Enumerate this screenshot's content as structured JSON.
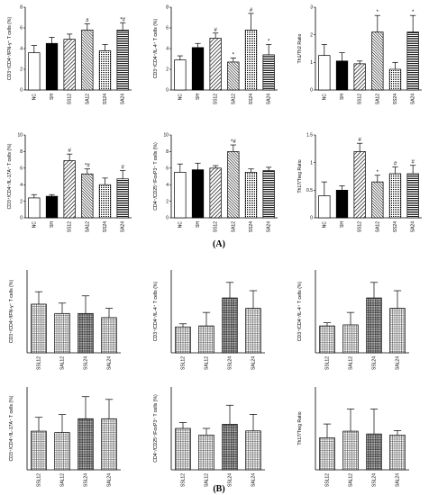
{
  "panel_labels": {
    "a": "(A)",
    "b": "(B)"
  },
  "chart_data": [
    {
      "type": "bar",
      "group": "A",
      "ylabel": "CD3⁺/CD4⁺/IFN-γ⁺ T cells (%)",
      "ylim": [
        0,
        8
      ],
      "yticks": [
        0,
        2,
        4,
        6,
        8
      ],
      "categories": [
        "NC",
        "SH",
        "SS12",
        "SA12",
        "SS24",
        "SA24"
      ],
      "values": [
        3.6,
        4.5,
        4.9,
        5.8,
        3.8,
        5.8
      ],
      "errors": [
        0.7,
        0.6,
        0.5,
        0.6,
        0.6,
        0.7
      ],
      "patterns": [
        "none",
        "solid",
        "diag",
        "diag-dense",
        "dots",
        "hlines"
      ],
      "annotations": [
        "",
        "",
        "",
        "#",
        "",
        "*#"
      ]
    },
    {
      "type": "bar",
      "group": "A",
      "ylabel": "CD3⁺/CD4⁺/IL-4⁺ T cells (%)",
      "ylim": [
        0,
        8
      ],
      "yticks": [
        0,
        2,
        4,
        6,
        8
      ],
      "categories": [
        "NC",
        "SH",
        "SS12",
        "SA12",
        "SS24",
        "SA24"
      ],
      "values": [
        2.9,
        4.1,
        5.0,
        2.7,
        5.8,
        3.4
      ],
      "errors": [
        0.4,
        0.4,
        0.5,
        0.4,
        1.6,
        1.0
      ],
      "patterns": [
        "none",
        "solid",
        "diag",
        "diag-dense",
        "dots",
        "hlines"
      ],
      "annotations": [
        "",
        "",
        "#",
        "*",
        "#",
        "*"
      ]
    },
    {
      "type": "bar",
      "group": "A",
      "ylabel": "Th1/Th2 Ratio",
      "ylim": [
        0,
        3
      ],
      "yticks": [
        0,
        1,
        2,
        3
      ],
      "categories": [
        "NC",
        "SH",
        "SS12",
        "SA12",
        "SS24",
        "SA24"
      ],
      "values": [
        1.25,
        1.05,
        0.95,
        2.1,
        0.75,
        2.1
      ],
      "errors": [
        0.4,
        0.3,
        0.1,
        0.6,
        0.25,
        0.6
      ],
      "patterns": [
        "none",
        "solid",
        "diag",
        "diag-dense",
        "dots",
        "hlines"
      ],
      "annotations": [
        "",
        "",
        "",
        "*",
        "",
        "*"
      ]
    },
    {
      "type": "bar",
      "group": "A",
      "ylabel": "CD3⁺/CD4⁺/IL-17A⁺ T cells (%)",
      "ylim": [
        0,
        10
      ],
      "yticks": [
        0,
        2,
        4,
        6,
        8,
        10
      ],
      "categories": [
        "NC",
        "SH",
        "SS12",
        "SA12",
        "SS24",
        "SA24"
      ],
      "values": [
        2.4,
        2.6,
        6.9,
        5.3,
        4.0,
        4.7
      ],
      "errors": [
        0.4,
        0.2,
        0.8,
        0.6,
        0.8,
        1.0
      ],
      "patterns": [
        "none",
        "solid",
        "diag",
        "diag-dense",
        "dots",
        "hlines"
      ],
      "annotations": [
        "",
        "",
        "#",
        "*#",
        "",
        "#"
      ]
    },
    {
      "type": "bar",
      "group": "A",
      "ylabel": "CD4⁺/CD25⁺/FoxP3⁺ T cells (%)",
      "ylim": [
        0,
        10
      ],
      "yticks": [
        0,
        2,
        4,
        6,
        8,
        10
      ],
      "categories": [
        "NC",
        "SH",
        "SS12",
        "SA12",
        "SS24",
        "SA24"
      ],
      "values": [
        5.5,
        5.8,
        6.0,
        8.0,
        5.5,
        5.7
      ],
      "errors": [
        1.0,
        0.8,
        0.3,
        0.8,
        0.4,
        0.4
      ],
      "patterns": [
        "none",
        "solid",
        "diag",
        "diag-dense",
        "dots",
        "hlines"
      ],
      "annotations": [
        "",
        "",
        "",
        "*#",
        "",
        ""
      ]
    },
    {
      "type": "bar",
      "group": "A",
      "ylabel": "Th17/Treg Ratio",
      "ylim": [
        0,
        1.5
      ],
      "yticks": [
        0,
        0.5,
        1.0,
        1.5
      ],
      "categories": [
        "NC",
        "SH",
        "SS12",
        "SA12",
        "SS24",
        "SA24"
      ],
      "values": [
        0.4,
        0.5,
        1.2,
        0.65,
        0.8,
        0.8
      ],
      "errors": [
        0.25,
        0.08,
        0.15,
        0.12,
        0.12,
        0.15
      ],
      "patterns": [
        "none",
        "solid",
        "diag",
        "diag-dense",
        "dots",
        "hlines"
      ],
      "annotations": [
        "",
        "",
        "#",
        "*",
        "#",
        "#"
      ]
    },
    {
      "type": "bar",
      "group": "B",
      "ylabel": "CD3⁺/CD4⁺/IFN-γ⁺ T cells (%)",
      "ylim": [
        0,
        8
      ],
      "categories": [
        "SSL12",
        "SAL12",
        "SSL24",
        "SAL24"
      ],
      "values": [
        4.7,
        3.8,
        3.8,
        3.4
      ],
      "errors": [
        1.2,
        1.0,
        1.7,
        0.9
      ],
      "patterns": [
        "grid",
        "grid",
        "grid-fine",
        "grid"
      ],
      "annotations": [
        "",
        "",
        "",
        ""
      ]
    },
    {
      "type": "bar",
      "group": "B",
      "ylabel": "CD3⁺/CD4⁺/IL-4⁺ T cells (%)",
      "ylim": [
        0,
        8
      ],
      "categories": [
        "SSL12",
        "SAL12",
        "SSL24",
        "SAL24"
      ],
      "values": [
        2.5,
        2.6,
        5.3,
        4.3
      ],
      "errors": [
        0.3,
        1.3,
        1.5,
        1.7
      ],
      "patterns": [
        "grid",
        "grid",
        "grid-fine",
        "grid"
      ],
      "annotations": [
        "",
        "",
        "",
        ""
      ]
    },
    {
      "type": "bar",
      "group": "B",
      "ylabel": "CD3⁺/CD4⁺/IL-4⁺ T cells (%)",
      "ylim": [
        0,
        8
      ],
      "categories": [
        "SSL12",
        "SAL12",
        "SSL24",
        "SAL24"
      ],
      "values": [
        2.6,
        2.7,
        5.3,
        4.3
      ],
      "errors": [
        0.3,
        1.2,
        1.5,
        1.7
      ],
      "patterns": [
        "grid",
        "grid",
        "grid-fine",
        "grid"
      ],
      "annotations": [
        "",
        "",
        "",
        ""
      ]
    },
    {
      "type": "bar",
      "group": "B",
      "ylabel": "CD3⁺/CD4⁺/IL-17A⁺ T cells (%)",
      "ylim": [
        0,
        6
      ],
      "categories": [
        "SSL12",
        "SAL12",
        "SSL24",
        "SAL24"
      ],
      "values": [
        2.8,
        2.7,
        3.7,
        3.7
      ],
      "errors": [
        1.0,
        1.3,
        1.6,
        1.4
      ],
      "patterns": [
        "grid",
        "grid",
        "grid-fine",
        "grid"
      ],
      "annotations": [
        "",
        "",
        "",
        ""
      ]
    },
    {
      "type": "bar",
      "group": "B",
      "ylabel": "CD4⁺/CD25⁺/FoxP3⁺ T cells (%)",
      "ylim": [
        0,
        10
      ],
      "categories": [
        "SSL12",
        "SAL12",
        "SSL24",
        "SAL24"
      ],
      "values": [
        5.0,
        4.2,
        5.5,
        4.7
      ],
      "errors": [
        0.7,
        0.8,
        2.3,
        2.0
      ],
      "patterns": [
        "grid",
        "grid",
        "grid-fine",
        "grid"
      ],
      "annotations": [
        "",
        "",
        "",
        ""
      ]
    },
    {
      "type": "bar",
      "group": "B",
      "ylabel": "Th17/Treg Ratio",
      "ylim": [
        0,
        1.5
      ],
      "categories": [
        "SSL12",
        "SAL12",
        "SSL24",
        "SAL24"
      ],
      "values": [
        0.58,
        0.7,
        0.65,
        0.63
      ],
      "errors": [
        0.25,
        0.4,
        0.45,
        0.08
      ],
      "patterns": [
        "grid",
        "grid",
        "grid-fine",
        "grid"
      ],
      "annotations": [
        "",
        "",
        "",
        ""
      ]
    }
  ]
}
